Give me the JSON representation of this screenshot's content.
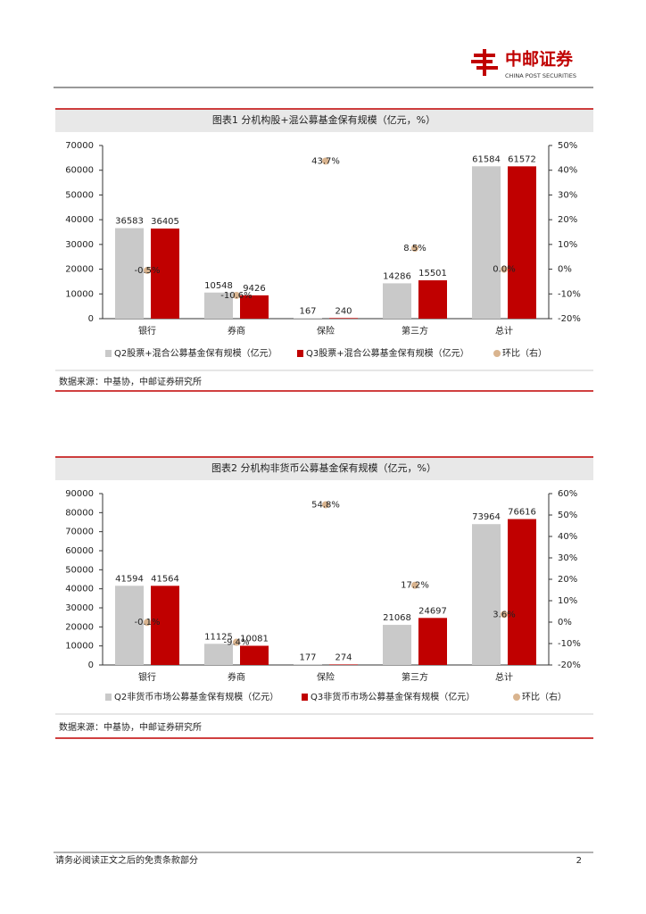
{
  "header": {
    "logo_text": "中邮证券",
    "logo_subtext": "CHINA POST SECURITIES"
  },
  "chart_data": [
    {
      "type": "bar",
      "title": "图表1 分机构股+混公募基金保有规模（亿元，%）",
      "categories": [
        "银行",
        "券商",
        "保险",
        "第三方",
        "总计"
      ],
      "series": [
        {
          "name": "Q2股票+混合公募基金保有规模（亿元）",
          "color": "#c9c9c9",
          "values": [
            36583,
            10548,
            167,
            14286,
            61584
          ]
        },
        {
          "name": "Q3股票+混合公募基金保有规模（亿元）",
          "color": "#c00000",
          "values": [
            36405,
            9426,
            240,
            15501,
            61572
          ]
        },
        {
          "name": "环比（右）",
          "color": "#d9b48f",
          "type": "scatter",
          "axis": "y2",
          "values": [
            -0.5,
            -10.6,
            43.7,
            8.5,
            0.0
          ],
          "value_labels": [
            "-0.5%",
            "-10.6%",
            "43.7%",
            "8.5%",
            "0.0%"
          ]
        }
      ],
      "ylim": [
        0,
        70000
      ],
      "yticks": [
        0,
        10000,
        20000,
        30000,
        40000,
        50000,
        60000,
        70000
      ],
      "y2lim": [
        -20,
        50
      ],
      "y2ticks": [
        {
          "value": -20,
          "label": "-20%"
        },
        {
          "value": -10,
          "label": "-10%"
        },
        {
          "value": 0,
          "label": "0%"
        },
        {
          "value": 10,
          "label": "10%"
        },
        {
          "value": 20,
          "label": "20%"
        },
        {
          "value": 30,
          "label": "30%"
        },
        {
          "value": 40,
          "label": "40%"
        },
        {
          "value": 50,
          "label": "50%"
        }
      ],
      "source": "数据来源：中基协，中邮证券研究所"
    },
    {
      "type": "bar",
      "title": "图表2 分机构非货币公募基金保有规模（亿元，%）",
      "categories": [
        "银行",
        "券商",
        "保险",
        "第三方",
        "总计"
      ],
      "series": [
        {
          "name": "Q2非货币市场公募基金保有规模（亿元）",
          "color": "#c9c9c9",
          "values": [
            41594,
            11125,
            177,
            21068,
            73964
          ]
        },
        {
          "name": "Q3非货币市场公募基金保有规模（亿元）",
          "color": "#c00000",
          "values": [
            41564,
            10081,
            274,
            24697,
            76616
          ]
        },
        {
          "name": "环比（右）",
          "color": "#d9b48f",
          "type": "scatter",
          "axis": "y2",
          "values": [
            -0.1,
            -9.4,
            54.8,
            17.2,
            3.6
          ],
          "value_labels": [
            "-0.1%",
            "-9.4%",
            "54.8%",
            "17.2%",
            "3.6%"
          ]
        }
      ],
      "ylim": [
        0,
        90000
      ],
      "yticks": [
        0,
        10000,
        20000,
        30000,
        40000,
        50000,
        60000,
        70000,
        80000,
        90000
      ],
      "y2lim": [
        -20,
        60
      ],
      "y2ticks": [
        {
          "value": -20,
          "label": "-20%"
        },
        {
          "value": -10,
          "label": "-10%"
        },
        {
          "value": 0,
          "label": "0%"
        },
        {
          "value": 10,
          "label": "10%"
        },
        {
          "value": 20,
          "label": "20%"
        },
        {
          "value": 30,
          "label": "30%"
        },
        {
          "value": 40,
          "label": "40%"
        },
        {
          "value": 50,
          "label": "50%"
        },
        {
          "value": 60,
          "label": "60%"
        }
      ],
      "source": "数据来源：中基协，中邮证券研究所"
    }
  ],
  "footer": {
    "disclaimer": "请务必阅读正文之后的免责条款部分",
    "page_number": 2
  }
}
